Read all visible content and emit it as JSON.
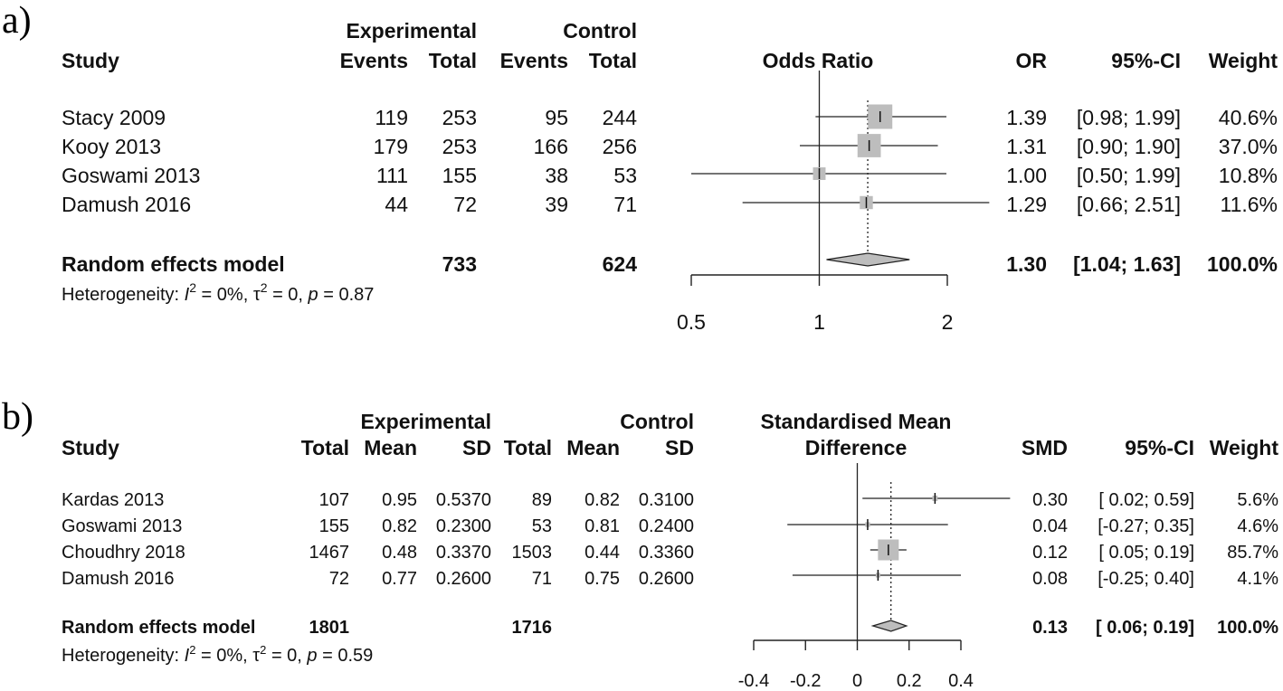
{
  "chart_data": [
    {
      "type": "forest",
      "panel_label": "a)",
      "columns": {
        "study": "Study",
        "group_exp": "Experimental",
        "group_ctl": "Control",
        "events": "Events",
        "total": "Total",
        "plot_title": "Odds Ratio",
        "effect": "OR",
        "ci": "95%-CI",
        "weight": "Weight"
      },
      "studies": [
        {
          "name": "Stacy 2009",
          "e_events": "119",
          "e_total": "253",
          "c_events": "95",
          "c_total": "244",
          "effect": 1.39,
          "lower": 0.98,
          "upper": 1.99,
          "weight_pct": 40.6,
          "effect_text": "1.39",
          "ci_text": "[0.98; 1.99]",
          "weight_text": "40.6%"
        },
        {
          "name": "Kooy 2013",
          "e_events": "179",
          "e_total": "253",
          "c_events": "166",
          "c_total": "256",
          "effect": 1.31,
          "lower": 0.9,
          "upper": 1.9,
          "weight_pct": 37.0,
          "effect_text": "1.31",
          "ci_text": "[0.90; 1.90]",
          "weight_text": "37.0%"
        },
        {
          "name": "Goswami 2013",
          "e_events": "111",
          "e_total": "155",
          "c_events": "38",
          "c_total": "53",
          "effect": 1.0,
          "lower": 0.5,
          "upper": 1.99,
          "weight_pct": 10.8,
          "effect_text": "1.00",
          "ci_text": "[0.50; 1.99]",
          "weight_text": "10.8%"
        },
        {
          "name": "Damush 2016",
          "e_events": "44",
          "e_total": "72",
          "c_events": "39",
          "c_total": "71",
          "effect": 1.29,
          "lower": 0.66,
          "upper": 2.51,
          "weight_pct": 11.6,
          "effect_text": "1.29",
          "ci_text": "[0.66; 2.51]",
          "weight_text": "11.6%"
        }
      ],
      "pooled": {
        "name": "Random effects model",
        "e_total": "733",
        "c_total": "624",
        "effect": 1.3,
        "lower": 1.04,
        "upper": 1.63,
        "effect_text": "1.30",
        "ci_text": "[1.04; 1.63]",
        "weight_text": "100.0%"
      },
      "heterogeneity": {
        "prefix": "Heterogeneity: ",
        "i2_symbol": "I",
        "exp": "2",
        "i2_value": " = 0%, ",
        "tau_symbol": "τ",
        "tau_value": " = 0, ",
        "p_symbol": "p",
        "p_value": " = 0.87"
      },
      "scale": "log",
      "null_value": 1,
      "axis": {
        "ticks": [
          0.5,
          1,
          2
        ],
        "tick_labels": [
          "0.5",
          "1",
          "2"
        ],
        "min": 0.5,
        "max": 2
      }
    },
    {
      "type": "forest",
      "panel_label": "b)",
      "columns": {
        "study": "Study",
        "group_exp": "Experimental",
        "group_ctl": "Control",
        "total": "Total",
        "mean": "Mean",
        "sd": "SD",
        "plot_title_1": "Standardised Mean",
        "plot_title_2": "Difference",
        "effect": "SMD",
        "ci": "95%-CI",
        "weight": "Weight"
      },
      "studies": [
        {
          "name": "Kardas 2013",
          "e_total": "107",
          "e_mean": "0.95",
          "e_sd": "0.5370",
          "c_total": "89",
          "c_mean": "0.82",
          "c_sd": "0.3100",
          "effect": 0.3,
          "lower": 0.02,
          "upper": 0.59,
          "weight_pct": 5.6,
          "effect_text": "0.30",
          "ci_text": "[ 0.02; 0.59]",
          "weight_text": "5.6%"
        },
        {
          "name": "Goswami 2013",
          "e_total": "155",
          "e_mean": "0.82",
          "e_sd": "0.2300",
          "c_total": "53",
          "c_mean": "0.81",
          "c_sd": "0.2400",
          "effect": 0.04,
          "lower": -0.27,
          "upper": 0.35,
          "weight_pct": 4.6,
          "effect_text": "0.04",
          "ci_text": "[-0.27; 0.35]",
          "weight_text": "4.6%"
        },
        {
          "name": "Choudhry 2018",
          "e_total": "1467",
          "e_mean": "0.48",
          "e_sd": "0.3370",
          "c_total": "1503",
          "c_mean": "0.44",
          "c_sd": "0.3360",
          "effect": 0.12,
          "lower": 0.05,
          "upper": 0.19,
          "weight_pct": 85.7,
          "effect_text": "0.12",
          "ci_text": "[ 0.05; 0.19]",
          "weight_text": "85.7%"
        },
        {
          "name": "Damush 2016",
          "e_total": "72",
          "e_mean": "0.77",
          "e_sd": "0.2600",
          "c_total": "71",
          "c_mean": "0.75",
          "c_sd": "0.2600",
          "effect": 0.08,
          "lower": -0.25,
          "upper": 0.4,
          "weight_pct": 4.1,
          "effect_text": "0.08",
          "ci_text": "[-0.25; 0.40]",
          "weight_text": "4.1%"
        }
      ],
      "pooled": {
        "name": "Random effects model",
        "e_total": "1801",
        "c_total": "1716",
        "effect": 0.13,
        "lower": 0.06,
        "upper": 0.19,
        "effect_text": "0.13",
        "ci_text": "[ 0.06; 0.19]",
        "weight_text": "100.0%"
      },
      "heterogeneity": {
        "prefix": "Heterogeneity: ",
        "i2_symbol": "I",
        "exp": "2",
        "i2_value": " = 0%, ",
        "tau_symbol": "τ",
        "tau_value": " = 0, ",
        "p_symbol": "p",
        "p_value": " = 0.59"
      },
      "scale": "linear",
      "null_value": 0,
      "axis": {
        "ticks": [
          -0.4,
          -0.2,
          0,
          0.2,
          0.4
        ],
        "tick_labels": [
          "-0.4",
          "-0.2",
          "0",
          "0.2",
          "0.4"
        ],
        "min": -0.4,
        "max": 0.4
      }
    }
  ]
}
